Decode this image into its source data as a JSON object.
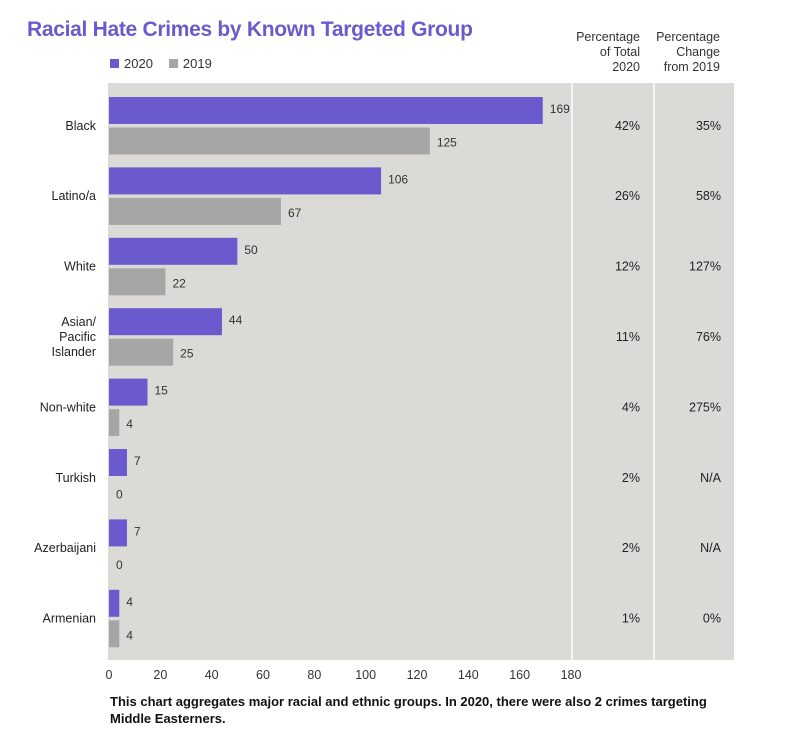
{
  "header": {
    "title": "Racial Hate Crimes by Known Targeted Group",
    "col_pct_total": [
      "Percentage",
      "of Total",
      "2020"
    ],
    "col_pct_change": [
      "Percentage",
      "Change",
      "from 2019"
    ]
  },
  "footnote": "This chart aggregates major racial and ethnic groups.  In 2020, there were also 2 crimes targeting Middle Easterners.",
  "colors": {
    "s2020": "#6a5acd",
    "s2019": "#a6a6a6",
    "panel": "#dcdad6"
  },
  "chart_data": {
    "type": "bar",
    "orientation": "horizontal",
    "title": "Racial Hate Crimes by Known Targeted Group",
    "categories": [
      [
        "Black"
      ],
      [
        "Latino/a"
      ],
      [
        "White"
      ],
      [
        "Asian/",
        "Pacific",
        "Islander"
      ],
      [
        "Non-white"
      ],
      [
        "Turkish"
      ],
      [
        "Azerbaijani"
      ],
      [
        "Armenian"
      ]
    ],
    "series": [
      {
        "name": "2020",
        "values": [
          169,
          106,
          50,
          44,
          15,
          7,
          7,
          4
        ]
      },
      {
        "name": "2019",
        "values": [
          125,
          67,
          22,
          25,
          4,
          0,
          0,
          4
        ]
      }
    ],
    "xlim": [
      0,
      180
    ],
    "xticks": [
      0,
      20,
      40,
      60,
      80,
      100,
      120,
      140,
      160,
      180
    ],
    "legend": "top-left",
    "pct_total_2020": [
      "42%",
      "26%",
      "12%",
      "11%",
      "4%",
      "2%",
      "2%",
      "1%"
    ],
    "pct_change_from_2019": [
      "35%",
      "58%",
      "127%",
      "76%",
      "275%",
      "N/A",
      "N/A",
      "0%"
    ]
  }
}
